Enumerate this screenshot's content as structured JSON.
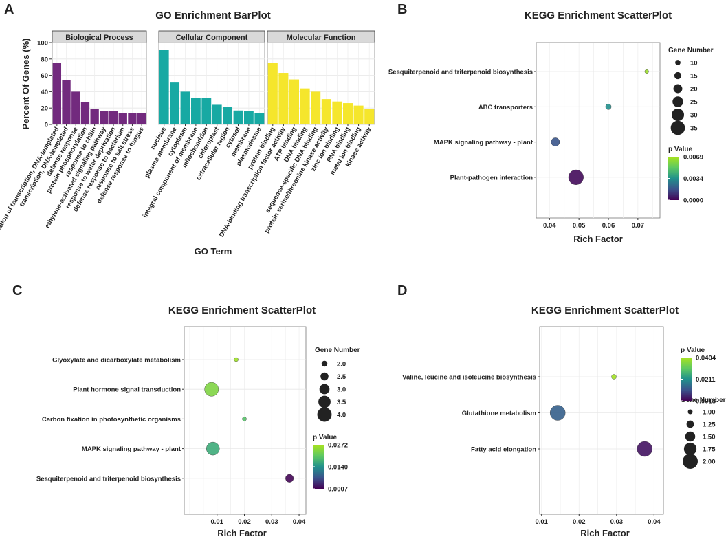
{
  "panels": {
    "a": {
      "letter": "A"
    },
    "b": {
      "letter": "B"
    },
    "c": {
      "letter": "C"
    },
    "d": {
      "letter": "D"
    }
  },
  "chart_data": [
    {
      "type": "bar",
      "panel": "A",
      "title": "GO Enrichment BarPlot",
      "xlabel": "GO Term",
      "ylabel": "Percent Of Genes (%)",
      "ylim": [
        0,
        100
      ],
      "yticks": [
        0,
        20,
        40,
        60,
        80,
        100
      ],
      "grid": true,
      "facets": [
        {
          "name": "Biological Process",
          "color": "#722a7e",
          "categories": [
            "regulation of transcription, DNA-templated",
            "transcription, DNA-templated",
            "defense response",
            "protein phosphorylation",
            "response to chitin",
            "ethylene-activated signaling pathway",
            "response to water deprivation",
            "defense response to bacterium",
            "response to salt stress",
            "defense response to fungus"
          ],
          "values": [
            75,
            54,
            40,
            27,
            19,
            16,
            16,
            14,
            14,
            14
          ]
        },
        {
          "name": "Cellular Component",
          "color": "#17a9a3",
          "categories": [
            "nucleus",
            "plasma membrane",
            "cytoplasm",
            "integral component of membrane",
            "mitochondrion",
            "chloroplast",
            "extracellular region",
            "cytosol",
            "membrane",
            "plasmodesma"
          ],
          "values": [
            91,
            52,
            40,
            32,
            32,
            24,
            21,
            17,
            16,
            14
          ]
        },
        {
          "name": "Molecular Function",
          "color": "#f5e62c",
          "categories": [
            "protein binding",
            "DNA-binding transcription factor activity",
            "ATP binding",
            "DNA binding",
            "sequence-specific DNA binding",
            "protein serine/threonine kinase activity",
            "zinc ion binding",
            "RNA binding",
            "metal ion binding",
            "kinase activity"
          ],
          "values": [
            75,
            63,
            55,
            44,
            40,
            31,
            28,
            26,
            23,
            19
          ]
        }
      ]
    },
    {
      "type": "scatter",
      "panel": "B",
      "title": "KEGG Enrichment ScatterPlot",
      "xlabel": "Rich Factor",
      "xlim": [
        0.0355,
        0.0775
      ],
      "xticks": [
        "0.04",
        "0.05",
        "0.06",
        "0.07"
      ],
      "points": [
        {
          "term": "Sesquiterpenoid and triterpenoid biosynthesis",
          "x": 0.073,
          "genes": 6,
          "p": 0.0066
        },
        {
          "term": "ABC transporters",
          "x": 0.06,
          "genes": 11,
          "p": 0.0034
        },
        {
          "term": "MAPK signaling pathway - plant",
          "x": 0.042,
          "genes": 19,
          "p": 0.0018
        },
        {
          "term": "Plant-pathogen interaction",
          "x": 0.049,
          "genes": 37,
          "p": 0.0002
        }
      ],
      "size_legend": {
        "title": "Gene Number",
        "values": [
          10,
          15,
          20,
          25,
          30,
          35
        ]
      },
      "color_legend": {
        "title": "p Value",
        "labels": [
          "0.0069",
          "0.0034",
          "0.0000"
        ],
        "min": 0.0,
        "max": 0.0069
      }
    },
    {
      "type": "scatter",
      "panel": "C",
      "title": "KEGG Enrichment ScatterPlot",
      "xlabel": "Rich Factor",
      "xlim": [
        -0.002,
        0.0425
      ],
      "xticks": [
        "0.01",
        "0.02",
        "0.03",
        "0.04"
      ],
      "points": [
        {
          "term": "Glyoxylate and dicarboxylate metabolism",
          "x": 0.017,
          "genes": 1.6,
          "p": 0.0262
        },
        {
          "term": "Plant hormone signal transduction",
          "x": 0.008,
          "genes": 3.9,
          "p": 0.0235
        },
        {
          "term": "Carbon fixation in photosynthetic organisms",
          "x": 0.02,
          "genes": 1.6,
          "p": 0.0196
        },
        {
          "term": "MAPK signaling pathway - plant",
          "x": 0.0085,
          "genes": 3.7,
          "p": 0.017
        },
        {
          "term": "Sesquiterpenoid and triterpenoid biosynthesis",
          "x": 0.0365,
          "genes": 2.5,
          "p": 0.001
        }
      ],
      "size_legend": {
        "title": "Gene Number",
        "values": [
          "2.0",
          "2.5",
          "3.0",
          "3.5",
          "4.0"
        ]
      },
      "color_legend": {
        "title": "p Value",
        "labels": [
          "0.0272",
          "0.0140",
          "0.0007"
        ],
        "min": 0.0007,
        "max": 0.0272
      }
    },
    {
      "type": "scatter",
      "panel": "D",
      "title": "KEGG Enrichment ScatterPlot",
      "xlabel": "Rich Factor",
      "xlim": [
        0.0095,
        0.0425
      ],
      "xticks": [
        "0.01",
        "0.02",
        "0.03",
        "0.04"
      ],
      "points": [
        {
          "term": "Valine, leucine and isoleucine biosynthesis",
          "x": 0.0293,
          "genes": 1,
          "p": 0.0395
        },
        {
          "term": "Glutathione metabolism",
          "x": 0.0143,
          "genes": 2,
          "p": 0.0135
        },
        {
          "term": "Fatty acid elongation",
          "x": 0.0375,
          "genes": 2,
          "p": 0.004
        }
      ],
      "size_legend": {
        "title": "Gene Number",
        "values": [
          "1.00",
          "1.25",
          "1.50",
          "1.75",
          "2.00"
        ]
      },
      "color_legend": {
        "title": "p Value",
        "labels": [
          "0.0404",
          "0.0211",
          "0.0018"
        ],
        "min": 0.0018,
        "max": 0.0404
      }
    }
  ]
}
